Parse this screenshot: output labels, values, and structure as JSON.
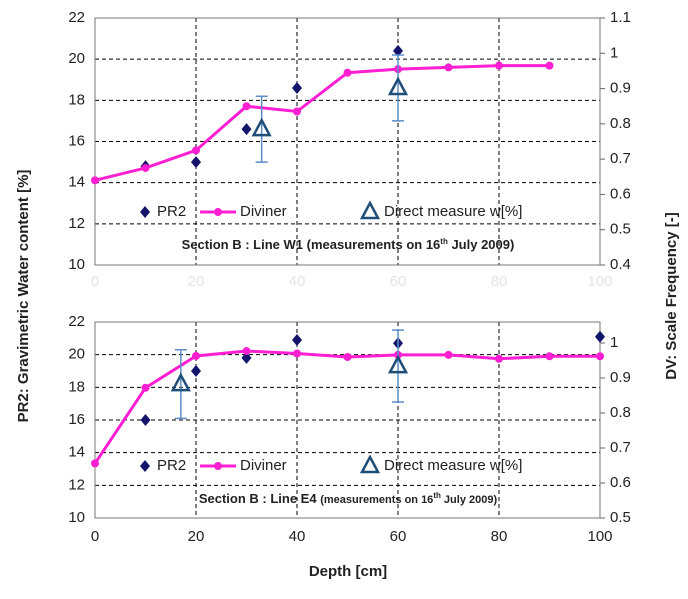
{
  "chart_data": [
    {
      "type": "combo",
      "ylabel": "PR2: Gravimetric Water content [%]",
      "y2label": "DV: Scale Frequency [-]",
      "annotation": [
        "Section B : Line W1 (measurements on 16",
        "th",
        " July 2009)"
      ],
      "xlim": [
        0,
        100
      ],
      "xticks": [
        0,
        20,
        40,
        60,
        80,
        100
      ],
      "ylim": [
        10,
        22
      ],
      "yticks": [
        10,
        12,
        14,
        16,
        18,
        20,
        22
      ],
      "y2lim": [
        0.4,
        1.1
      ],
      "y2ticks": [
        0.4,
        0.5,
        0.6,
        0.7,
        0.8,
        0.9,
        1,
        1.1
      ],
      "grid": true,
      "series": [
        {
          "name": "PR2",
          "type": "scatter",
          "marker": "diamond",
          "color": "#14146b",
          "x": [
            10,
            20,
            30,
            40,
            60
          ],
          "values": [
            14.8,
            15.0,
            16.6,
            18.6,
            20.4
          ]
        },
        {
          "name": "Diviner",
          "type": "line",
          "axis": "y2",
          "color": "#ff1fd2",
          "x": [
            0,
            10,
            20,
            30,
            40,
            50,
            60,
            70,
            80,
            90
          ],
          "values": [
            0.64,
            0.675,
            0.725,
            0.85,
            0.835,
            0.945,
            0.955,
            0.96,
            0.965,
            0.965
          ]
        },
        {
          "name": "Direct measure w[%]",
          "type": "scatter",
          "marker": "triangle",
          "color": "#1f4e79",
          "x": [
            33,
            60
          ],
          "values": [
            16.6,
            18.6
          ],
          "errors": [
            1.6,
            1.6
          ]
        }
      ]
    },
    {
      "type": "combo",
      "xlabel": "Depth [cm]",
      "annotation": [
        "Section B : Line E4 ",
        "(measurements on 16",
        "th",
        " July 2009)"
      ],
      "xlim": [
        0,
        100
      ],
      "xticks": [
        0,
        20,
        40,
        60,
        80,
        100
      ],
      "ylim": [
        10,
        22
      ],
      "yticks": [
        10,
        12,
        14,
        16,
        18,
        20,
        22
      ],
      "y2lim": [
        0.5,
        1.06
      ],
      "y2ticks": [
        0.5,
        0.6,
        0.7,
        0.8,
        0.9,
        1
      ],
      "grid": true,
      "series": [
        {
          "name": "PR2",
          "type": "scatter",
          "marker": "diamond",
          "color": "#14146b",
          "x": [
            10,
            20,
            30,
            40,
            60,
            100
          ],
          "values": [
            16.0,
            19.0,
            19.8,
            20.9,
            20.7,
            21.1
          ]
        },
        {
          "name": "Diviner",
          "type": "line",
          "axis": "y2",
          "color": "#ff1fd2",
          "x": [
            0,
            10,
            20,
            30,
            40,
            50,
            60,
            70,
            80,
            90,
            100
          ],
          "values": [
            0.656,
            0.872,
            0.963,
            0.977,
            0.97,
            0.96,
            0.966,
            0.966,
            0.955,
            0.962,
            0.962
          ]
        },
        {
          "name": "Direct measure w[%]",
          "type": "scatter",
          "marker": "triangle",
          "color": "#1f4e79",
          "x": [
            17,
            60
          ],
          "values": [
            18.2,
            19.3
          ],
          "errors": [
            2.1,
            2.2
          ]
        }
      ]
    }
  ]
}
